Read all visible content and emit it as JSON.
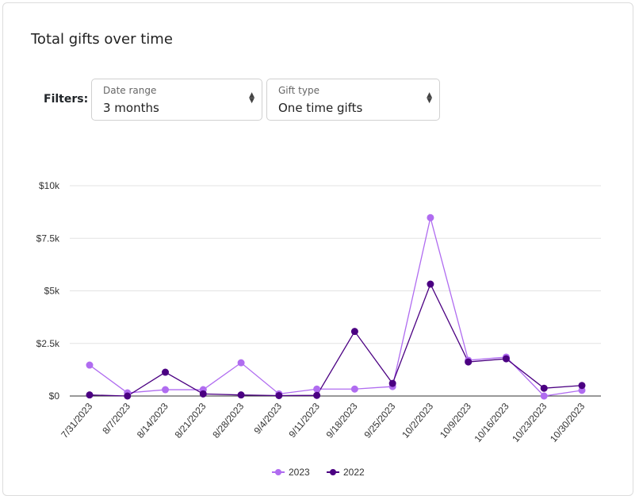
{
  "card": {
    "title": "Total gifts over time"
  },
  "filters": {
    "label": "Filters:",
    "date_range": {
      "label": "Date range",
      "value": "3 months"
    },
    "gift_type": {
      "label": "Gift type",
      "value": "One time gifts"
    }
  },
  "chart_data": {
    "type": "line",
    "title": "",
    "xlabel": "",
    "ylabel": "",
    "ylim": [
      0,
      10000
    ],
    "grid": true,
    "legend_position": "bottom-center",
    "y_ticks": [
      {
        "value": 0,
        "label": "$0"
      },
      {
        "value": 2500,
        "label": "$2.5k"
      },
      {
        "value": 5000,
        "label": "$5k"
      },
      {
        "value": 7500,
        "label": "$7.5k"
      },
      {
        "value": 10000,
        "label": "$10k"
      }
    ],
    "categories": [
      "7/31/2023",
      "8/7/2023",
      "8/14/2023",
      "8/21/2023",
      "8/28/2023",
      "9/4/2023",
      "9/11/2023",
      "9/18/2023",
      "9/25/2023",
      "10/2/2023",
      "10/9/2023",
      "10/16/2023",
      "10/23/2023",
      "10/30/2023"
    ],
    "series": [
      {
        "name": "2023",
        "color": "#b06cf0",
        "values": [
          1470,
          150,
          300,
          300,
          1580,
          100,
          330,
          330,
          450,
          8480,
          1700,
          1850,
          0,
          270
        ]
      },
      {
        "name": "2022",
        "color": "#4b0082",
        "values": [
          50,
          0,
          1130,
          100,
          50,
          20,
          30,
          3070,
          600,
          5320,
          1620,
          1770,
          370,
          500
        ]
      }
    ]
  }
}
